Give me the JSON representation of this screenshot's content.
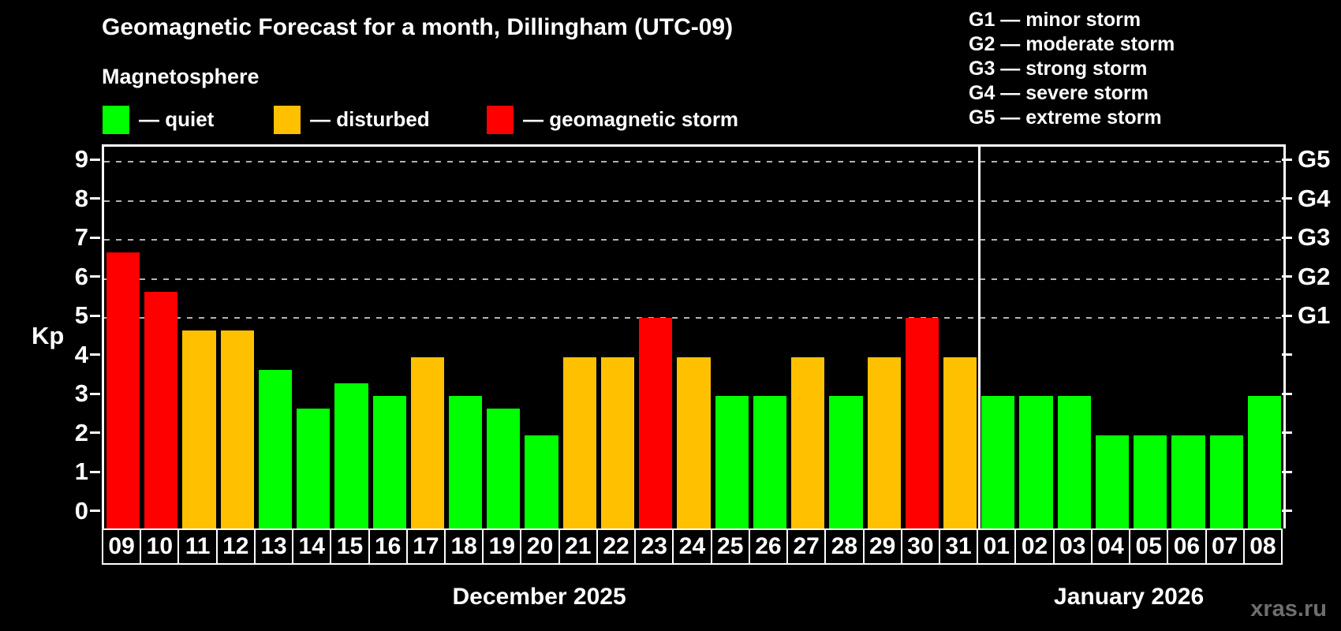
{
  "title": "Geomagnetic Forecast for a month, Dillingham (UTC-09)",
  "subtitle": "Magnetosphere",
  "bar_legend": {
    "items": [
      {
        "label": "— quiet",
        "status": "quiet"
      },
      {
        "label": "— disturbed",
        "status": "disturbed"
      },
      {
        "label": "— geomagnetic storm",
        "status": "storm"
      }
    ]
  },
  "g_legend": {
    "items": [
      "G1 — minor storm",
      "G2 — moderate storm",
      "G3 — strong storm",
      "G4 — severe storm",
      "G5 — extreme storm"
    ]
  },
  "watermark": "xras.ru",
  "chart_data": {
    "type": "bar",
    "title": "Geomagnetic Forecast for a month, Dillingham (UTC-09)",
    "ylabel": "Kp",
    "ylim": [
      0,
      9
    ],
    "y_ticks": [
      0,
      1,
      2,
      3,
      4,
      5,
      6,
      7,
      8,
      9
    ],
    "gridlines_at": [
      5,
      6,
      7,
      8,
      9
    ],
    "grid": "dashed, only at storm levels G1-G5",
    "legend_position": "top",
    "g_scale": [
      {
        "kp": 5,
        "label": "G1"
      },
      {
        "kp": 6,
        "label": "G2"
      },
      {
        "kp": 7,
        "label": "G3"
      },
      {
        "kp": 8,
        "label": "G4"
      },
      {
        "kp": 9,
        "label": "G5"
      }
    ],
    "status_colors": {
      "quiet": "#00ff00",
      "disturbed": "#ffc000",
      "storm": "#ff0000"
    },
    "groups": [
      {
        "month_label": "December 2025",
        "days": [
          "09",
          "10",
          "11",
          "12",
          "13",
          "14",
          "15",
          "16",
          "17",
          "18",
          "19",
          "20",
          "21",
          "22",
          "23",
          "24",
          "25",
          "26",
          "27",
          "28",
          "29",
          "30",
          "31"
        ],
        "values": [
          6.67,
          5.67,
          4.67,
          4.67,
          3.67,
          2.67,
          3.33,
          3,
          4,
          3,
          2.67,
          2,
          4,
          4,
          5,
          4,
          3,
          3,
          4,
          3,
          4,
          5,
          4
        ],
        "status": [
          "storm",
          "storm",
          "disturbed",
          "disturbed",
          "quiet",
          "quiet",
          "quiet",
          "quiet",
          "disturbed",
          "quiet",
          "quiet",
          "quiet",
          "disturbed",
          "disturbed",
          "storm",
          "disturbed",
          "quiet",
          "quiet",
          "disturbed",
          "quiet",
          "disturbed",
          "storm",
          "disturbed"
        ]
      },
      {
        "month_label": "January 2026",
        "days": [
          "01",
          "02",
          "03",
          "04",
          "05",
          "06",
          "07",
          "08"
        ],
        "values": [
          3,
          3,
          3,
          2,
          2,
          2,
          2,
          3
        ],
        "status": [
          "quiet",
          "quiet",
          "quiet",
          "quiet",
          "quiet",
          "quiet",
          "quiet",
          "quiet"
        ]
      }
    ]
  }
}
